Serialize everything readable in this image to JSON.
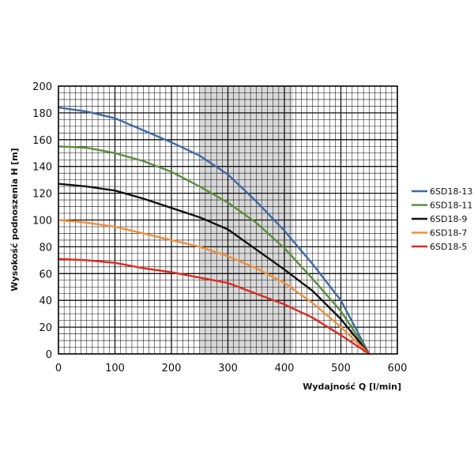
{
  "chart_data": {
    "type": "line",
    "title": "",
    "xlabel": "Wydajność Q [l/min]",
    "ylabel": "Wysokość podnoszenia H [m]",
    "xlim": [
      0,
      600
    ],
    "ylim": [
      0,
      200
    ],
    "x_ticks": [
      0,
      100,
      200,
      300,
      400,
      500,
      600
    ],
    "y_ticks": [
      0,
      20,
      40,
      60,
      80,
      100,
      120,
      140,
      160,
      180,
      200
    ],
    "grid": true,
    "highlight_band": {
      "x_from": 250,
      "x_to": 415,
      "color": "#d9d9d9"
    },
    "legend_position": "right",
    "series": [
      {
        "name": "6SD18-13",
        "color": "#3e6aa8",
        "x": [
          0,
          50,
          100,
          150,
          200,
          250,
          300,
          350,
          400,
          450,
          500,
          550
        ],
        "y": [
          184,
          181,
          176,
          167,
          158,
          148,
          134,
          114,
          92,
          67,
          40,
          0
        ]
      },
      {
        "name": "6SD18-11",
        "color": "#5a8f3c",
        "x": [
          0,
          50,
          100,
          150,
          200,
          250,
          300,
          350,
          400,
          450,
          500,
          550
        ],
        "y": [
          155,
          154,
          150,
          144,
          136,
          125,
          113,
          98,
          79,
          56,
          32,
          0
        ]
      },
      {
        "name": "6SD18-9",
        "color": "#111111",
        "x": [
          0,
          50,
          100,
          150,
          200,
          250,
          300,
          350,
          400,
          450,
          500,
          550
        ],
        "y": [
          127,
          125,
          122,
          116,
          109,
          102,
          93,
          78,
          63,
          47,
          26,
          0
        ]
      },
      {
        "name": "6SD18-7",
        "color": "#f0903c",
        "x": [
          0,
          50,
          100,
          150,
          200,
          250,
          300,
          350,
          400,
          450,
          500,
          550
        ],
        "y": [
          100,
          98,
          95,
          90,
          85,
          80,
          73,
          64,
          53,
          38,
          20,
          0
        ]
      },
      {
        "name": "6SD18-5",
        "color": "#dd2a1f",
        "x": [
          0,
          50,
          100,
          150,
          200,
          250,
          300,
          350,
          400,
          450,
          500,
          550
        ],
        "y": [
          71,
          70,
          68,
          64,
          61,
          57,
          53,
          45,
          37,
          27,
          14,
          0
        ]
      }
    ]
  }
}
